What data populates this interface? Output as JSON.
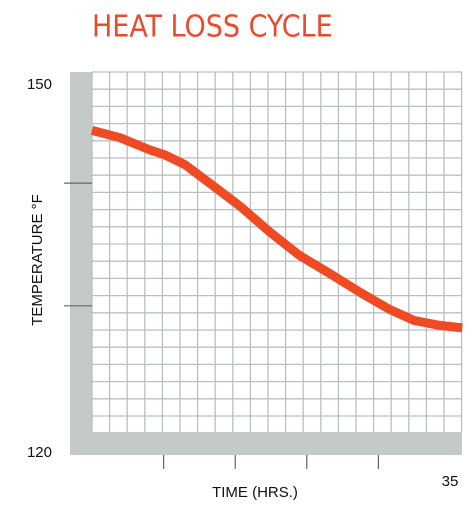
{
  "chart_data": {
    "type": "line",
    "title": "HEAT LOSS CYCLE",
    "x_label": "TIME (HRS.)",
    "y_label": "TEMPERATURE °F",
    "xlim": [
      0,
      35
    ],
    "xticks": [
      35
    ],
    "minor_xticks": [
      7,
      14,
      21,
      28
    ],
    "ylim": [
      120,
      150
    ],
    "yticks": [
      120,
      150
    ],
    "minor_yticks": [
      132,
      142
    ],
    "grid": true,
    "series": [
      {
        "name": "Temperature",
        "color": "#f04a24",
        "x": [
          0,
          2.74,
          5.67,
          7.14,
          9.09,
          11.5,
          14.5,
          17.4,
          20.3,
          23.3,
          26.2,
          29.1,
          31.5,
          34.0,
          36.2
        ],
        "values": [
          146.3,
          145.7,
          144.7,
          144.3,
          143.5,
          142.0,
          140.1,
          138.0,
          136.1,
          134.6,
          133.1,
          131.7,
          130.8,
          130.4,
          130.2
        ]
      }
    ]
  }
}
